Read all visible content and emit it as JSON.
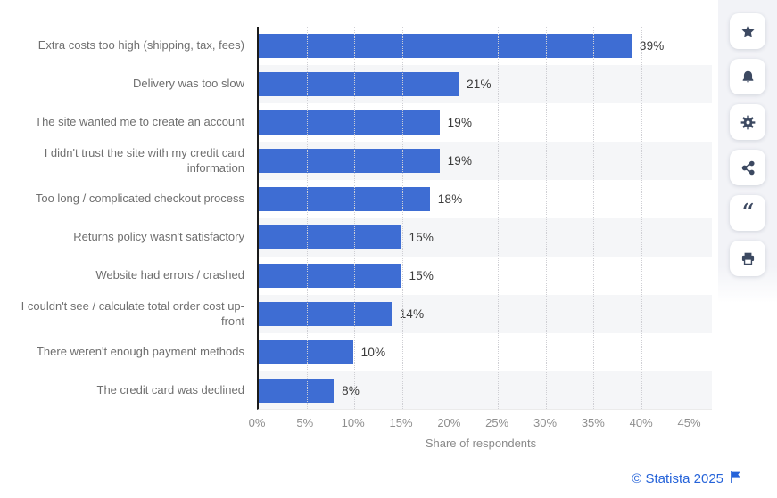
{
  "chart_data": {
    "type": "bar",
    "orientation": "horizontal",
    "categories": [
      "Extra costs too high (shipping, tax, fees)",
      "Delivery was too slow",
      "The site wanted me to create an account",
      "I didn't trust the site with my credit card information",
      "Too long / complicated checkout process",
      "Returns policy wasn't satisfactory",
      "Website had errors / crashed",
      "I couldn't see / calculate total order cost up-front",
      "There weren't enough payment methods",
      "The credit card was declined"
    ],
    "values": [
      39,
      21,
      19,
      19,
      18,
      15,
      15,
      14,
      10,
      8
    ],
    "value_labels": [
      "39%",
      "21%",
      "19%",
      "19%",
      "18%",
      "15%",
      "15%",
      "14%",
      "10%",
      "8%"
    ],
    "xlabel": "Share of respondents",
    "xlim": [
      0,
      45
    ],
    "xticks": [
      0,
      5,
      10,
      15,
      20,
      25,
      30,
      35,
      40,
      45
    ],
    "xtick_labels": [
      "0%",
      "5%",
      "10%",
      "15%",
      "20%",
      "25%",
      "30%",
      "35%",
      "40%",
      "45%"
    ],
    "grid": "vertical-dotted",
    "row_stripes": true,
    "legend": null,
    "bar_color": "#3E6DD3"
  },
  "toolbar": {
    "icons": [
      {
        "name": "favorite-star"
      },
      {
        "name": "notifications-bell"
      },
      {
        "name": "settings-gear"
      },
      {
        "name": "share"
      },
      {
        "name": "cite-quote"
      },
      {
        "name": "print"
      }
    ]
  },
  "footer": {
    "copyright": "© Statista 2025"
  },
  "colors": {
    "bar": "#3E6DD3",
    "stripe": "#f5f6f8",
    "icon": "#3C4961",
    "strip_bg": "#f2f3f7",
    "link_blue": "#2563d9",
    "category_label": "#6f6f6f",
    "value_label": "#3a3a3a",
    "tick_label": "#8e8e8e"
  }
}
